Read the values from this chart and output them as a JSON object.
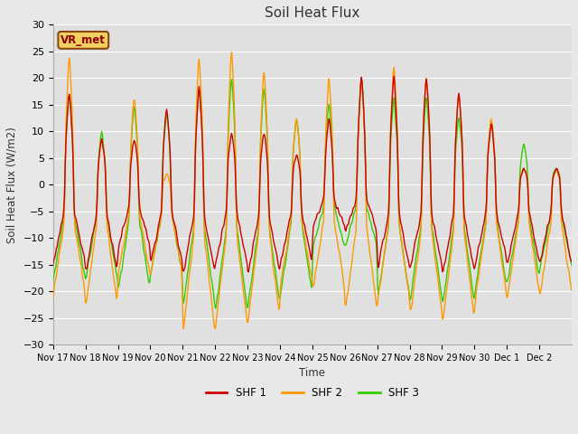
{
  "title": "Soil Heat Flux",
  "ylabel": "Soil Heat Flux (W/m2)",
  "xlabel": "Time",
  "ylim": [
    -30,
    30
  ],
  "yticks": [
    -30,
    -25,
    -20,
    -15,
    -10,
    -5,
    0,
    5,
    10,
    15,
    20,
    25,
    30
  ],
  "xtick_labels": [
    "Nov 17",
    "Nov 18",
    "Nov 19",
    "Nov 20",
    "Nov 21",
    "Nov 22",
    "Nov 23",
    "Nov 24",
    "Nov 25",
    "Nov 26",
    "Nov 27",
    "Nov 28",
    "Nov 29",
    "Nov 30",
    "Dec 1",
    "Dec 2"
  ],
  "colors": {
    "SHF 1": "#cc0000",
    "SHF 2": "#ff9900",
    "SHF 3": "#33cc00"
  },
  "legend_label": "VR_met",
  "fig_bg": "#e8e8e8",
  "plot_bg": "#e0e0e0",
  "grid_color": "#ffffff",
  "line_width": 1.0,
  "day_peak_shf1": [
    18,
    9,
    9,
    15,
    19,
    10,
    10,
    6,
    13,
    21,
    21,
    21,
    18,
    12,
    3,
    3
  ],
  "day_peak_shf2": [
    25,
    9,
    17,
    2,
    25,
    26,
    22,
    13,
    21,
    21,
    23,
    21,
    18,
    13,
    3,
    3
  ],
  "day_peak_shf3": [
    18,
    10,
    15,
    14,
    19,
    21,
    19,
    13,
    16,
    21,
    17,
    17,
    13,
    13,
    8,
    3
  ],
  "day_trough_shf1": [
    -15,
    -17,
    -12,
    -15,
    -17,
    -15,
    -17,
    -15,
    -8,
    -9,
    -16,
    -16,
    -17,
    -15,
    -15,
    -15
  ],
  "day_trough_shf2": [
    -21,
    -23,
    -17,
    -17,
    -28,
    -27,
    -26,
    -19,
    -20,
    -24,
    -22,
    -25,
    -26,
    -22,
    -21,
    -21
  ],
  "day_trough_shf3": [
    -18,
    -18,
    -20,
    -17,
    -23,
    -24,
    -23,
    -21,
    -12,
    -12,
    -22,
    -22,
    -23,
    -20,
    -18,
    -16
  ]
}
